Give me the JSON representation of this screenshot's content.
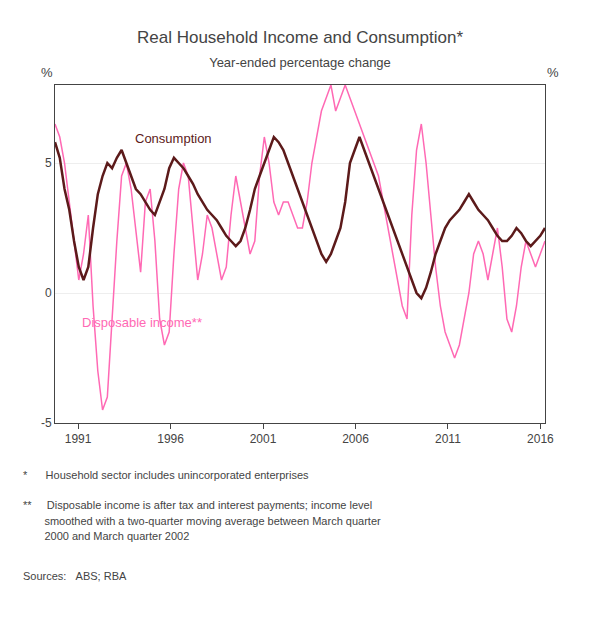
{
  "chart_data": {
    "type": "line",
    "title": "Real Household Income and Consumption*",
    "subtitle": "Year-ended percentage change",
    "ylabel": "%",
    "y2label": "%",
    "x": [
      1989.75,
      1990.0073,
      1990.2646,
      1990.5218,
      1990.7791,
      1991.0364,
      1991.2937,
      1991.551,
      1991.8083,
      1992.0655,
      1992.3228,
      1992.5801,
      1992.8374,
      1993.0947,
      1993.3519,
      1993.6092,
      1993.8665,
      1994.1238,
      1994.3811,
      1994.6383,
      1994.8956,
      1995.1529,
      1995.4102,
      1995.6675,
      1995.9248,
      1996.182,
      1996.4393,
      1996.6966,
      1996.9539,
      1997.2112,
      1997.4684,
      1997.7257,
      1997.983,
      1998.2403,
      1998.4976,
      1998.7549,
      1999.0121,
      1999.2694,
      1999.5267,
      1999.784,
      2000.0413,
      2000.2985,
      2000.5558,
      2000.8131,
      2001.0704,
      2001.3277,
      2001.585,
      2001.8422,
      2002.0995,
      2002.3568,
      2002.6141,
      2002.8714,
      2003.1286,
      2003.3859,
      2003.6432,
      2003.9005,
      2004.1578,
      2004.415,
      2004.6723,
      2004.9296,
      2005.1869,
      2005.4442,
      2005.7015,
      2005.9587,
      2006.216,
      2006.4733,
      2006.7306,
      2006.9879,
      2007.2451,
      2007.5024,
      2007.7597,
      2008.017,
      2008.2743,
      2008.5316,
      2008.7888,
      2009.0461,
      2009.3034,
      2009.5607,
      2009.818,
      2010.0752,
      2010.3325,
      2010.5898,
      2010.8471,
      2011.1044,
      2011.3617,
      2011.6189,
      2011.8762,
      2012.1335,
      2012.3908,
      2012.6481,
      2012.9053,
      2013.1626,
      2013.4199,
      2013.6772,
      2013.9345,
      2014.1917,
      2014.449,
      2014.7063,
      2014.9636,
      2015.2209,
      2015.4782,
      2015.7354,
      2015.9927,
      2016.25
    ],
    "xlim": [
      1989.75,
      2016.25
    ],
    "xticks": [
      1991,
      1996,
      2001,
      2006,
      2011,
      2016
    ],
    "ylim": [
      -5,
      8
    ],
    "yticks": [
      -5,
      0,
      5
    ],
    "y2lim": [
      -5,
      8
    ],
    "y2ticks": [
      -5,
      0,
      5
    ],
    "grid": true,
    "series": [
      {
        "name": "Disposable income**",
        "color": "#FF69B4",
        "values": [
          6.5,
          6.0,
          5.0,
          3.5,
          2.0,
          0.5,
          1.5,
          3.0,
          -0.5,
          -3.0,
          -4.5,
          -4.0,
          -1.0,
          2.0,
          4.5,
          5.0,
          4.0,
          2.5,
          0.8,
          3.5,
          4.0,
          2.0,
          -1.0,
          -2.0,
          -1.5,
          1.5,
          4.0,
          5.0,
          4.5,
          2.5,
          0.5,
          1.5,
          3.0,
          2.5,
          1.5,
          0.5,
          1.0,
          3.0,
          4.5,
          3.5,
          2.5,
          1.5,
          2.0,
          4.5,
          6.0,
          5.0,
          3.5,
          3.0,
          3.5,
          3.5,
          3.0,
          2.5,
          2.5,
          3.5,
          5.0,
          6.0,
          7.0,
          7.5,
          8.0,
          7.0,
          7.5,
          8.0,
          7.5,
          7.0,
          6.5,
          6.0,
          5.5,
          5.0,
          4.5,
          3.5,
          2.5,
          1.5,
          0.5,
          -0.5,
          -1.0,
          3.0,
          5.5,
          6.5,
          5.0,
          3.0,
          1.0,
          -0.5,
          -1.5,
          -2.0,
          -2.5,
          -2.0,
          -1.0,
          0.0,
          1.5,
          2.0,
          1.5,
          0.5,
          1.5,
          2.5,
          1.0,
          -1.0,
          -1.5,
          -0.5,
          1.0,
          2.0,
          1.5,
          1.0,
          1.5,
          2.0
        ]
      },
      {
        "name": "Consumption",
        "color": "#5C1A1A",
        "values": [
          5.8,
          5.2,
          4.0,
          3.2,
          2.0,
          1.0,
          0.5,
          1.0,
          2.5,
          3.8,
          4.5,
          5.0,
          4.8,
          5.2,
          5.5,
          5.0,
          4.5,
          4.0,
          3.8,
          3.5,
          3.2,
          3.0,
          3.5,
          4.0,
          4.8,
          5.2,
          5.0,
          4.8,
          4.5,
          4.2,
          3.8,
          3.5,
          3.2,
          3.0,
          2.8,
          2.5,
          2.2,
          2.0,
          1.8,
          2.0,
          2.5,
          3.2,
          4.0,
          4.5,
          5.0,
          5.5,
          6.0,
          5.8,
          5.5,
          5.0,
          4.5,
          4.0,
          3.5,
          3.0,
          2.5,
          2.0,
          1.5,
          1.2,
          1.5,
          2.0,
          2.5,
          3.5,
          5.0,
          5.5,
          6.0,
          5.5,
          5.0,
          4.5,
          4.0,
          3.5,
          3.0,
          2.5,
          2.0,
          1.5,
          1.0,
          0.5,
          0.0,
          -0.2,
          0.2,
          0.8,
          1.5,
          2.0,
          2.5,
          2.8,
          3.0,
          3.2,
          3.5,
          3.8,
          3.5,
          3.2,
          3.0,
          2.8,
          2.5,
          2.2,
          2.0,
          2.0,
          2.2,
          2.5,
          2.3,
          2.0,
          1.8,
          2.0,
          2.2,
          2.5
        ]
      }
    ],
    "notes": [
      "*      Household sector includes unincorporated enterprises",
      "**     Disposable income is after tax and interest payments; income level",
      "       smoothed with a two-quarter moving average between March quarter",
      "       2000 and March quarter 2002"
    ],
    "sources": "Sources:   ABS; RBA"
  }
}
